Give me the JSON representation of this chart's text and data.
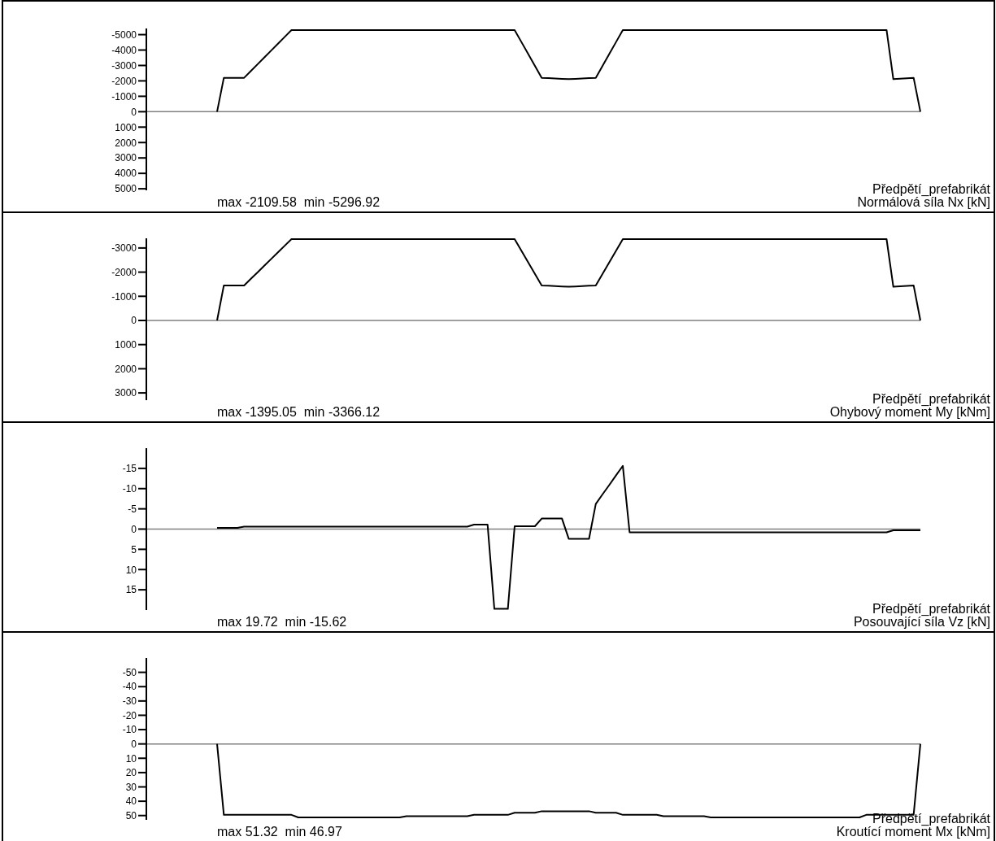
{
  "chart_data": [
    {
      "type": "line",
      "title": "Normálová síla Nx [kN]",
      "subtitle": "Předpětí_prefabrikát",
      "annotations": [
        "max -2109.58  min -5296.92"
      ],
      "tick_labels": "y",
      "color": "#000000",
      "ylim": [
        5100,
        -5400
      ],
      "yticks": [
        -5000,
        -4000,
        -3000,
        -2000,
        -1000,
        0,
        1000,
        2000,
        3000,
        4000,
        5000
      ],
      "ref_lines": [
        {
          "axis": "y",
          "value": 0,
          "color": "#808080"
        }
      ],
      "categories": [
        null,
        null,
        null,
        null,
        null,
        null,
        null,
        null,
        null,
        null,
        null,
        null,
        null,
        null,
        null,
        null,
        null,
        null,
        null,
        null,
        null,
        null,
        null,
        null,
        null,
        null,
        null,
        null,
        null,
        null,
        null,
        null,
        null,
        null,
        null,
        null,
        null,
        null,
        null,
        null,
        null,
        null,
        null,
        null,
        null,
        null,
        null,
        null,
        null,
        null,
        null,
        null,
        null,
        null,
        null,
        null,
        null,
        null,
        null,
        null,
        null,
        null,
        null,
        null,
        null,
        null,
        null,
        null,
        null,
        null,
        null,
        null,
        null,
        null,
        null,
        null,
        null,
        null,
        null,
        null,
        null,
        null,
        null,
        null,
        null,
        null,
        null,
        null,
        null,
        null,
        null,
        null,
        null,
        null,
        null,
        null,
        null,
        null,
        null,
        null,
        null,
        null,
        null,
        null,
        null
      ],
      "values": [
        0,
        -2200,
        -2200,
        -2200,
        -2200,
        -2642,
        -3085,
        -3527,
        -3970,
        -4412,
        -4855,
        -5297,
        -5297,
        -5297,
        -5297,
        -5297,
        -5297,
        -5297,
        -5297,
        -5297,
        -5297,
        -5297,
        -5297,
        -5297,
        -5297,
        -5297,
        -5297,
        -5297,
        -5297,
        -5297,
        -5297,
        -5297,
        -5297,
        -5297,
        -5297,
        -5297,
        -5297,
        -5297,
        -5297,
        -5297,
        -5297,
        -5297,
        -5297,
        -5297,
        -5297,
        -4523,
        -3749,
        -2974,
        -2200,
        -2178,
        -2155,
        -2133,
        -2110,
        -2133,
        -2155,
        -2178,
        -2200,
        -2974,
        -3749,
        -4523,
        -5297,
        -5297,
        -5297,
        -5297,
        -5297,
        -5297,
        -5297,
        -5297,
        -5297,
        -5297,
        -5297,
        -5297,
        -5297,
        -5297,
        -5297,
        -5297,
        -5297,
        -5297,
        -5297,
        -5297,
        -5297,
        -5297,
        -5297,
        -5297,
        -5297,
        -5297,
        -5297,
        -5297,
        -5297,
        -5297,
        -5297,
        -5297,
        -5297,
        -5297,
        -5297,
        -5297,
        -5297,
        -5297,
        -5297,
        -5297,
        -2110,
        -2140,
        -2170,
        -2200,
        0
      ]
    },
    {
      "type": "line",
      "title": "Ohybový moment My [kNm]",
      "subtitle": "Předpětí_prefabrikát",
      "annotations": [
        "max -1395.05  min -3366.12"
      ],
      "tick_labels": "y",
      "color": "#000000",
      "ylim": [
        3300,
        -3400
      ],
      "yticks": [
        -3000,
        -2000,
        -1000,
        0,
        1000,
        2000,
        3000
      ],
      "ref_lines": [
        {
          "axis": "y",
          "value": 0,
          "color": "#808080"
        }
      ],
      "categories": [
        null,
        null,
        null,
        null,
        null,
        null,
        null,
        null,
        null,
        null,
        null,
        null,
        null,
        null,
        null,
        null,
        null,
        null,
        null,
        null,
        null,
        null,
        null,
        null,
        null,
        null,
        null,
        null,
        null,
        null,
        null,
        null,
        null,
        null,
        null,
        null,
        null,
        null,
        null,
        null,
        null,
        null,
        null,
        null,
        null,
        null,
        null,
        null,
        null,
        null,
        null,
        null,
        null,
        null,
        null,
        null,
        null,
        null,
        null,
        null,
        null,
        null,
        null,
        null,
        null,
        null,
        null,
        null,
        null,
        null,
        null,
        null,
        null,
        null,
        null,
        null,
        null,
        null,
        null,
        null,
        null,
        null,
        null,
        null,
        null,
        null,
        null,
        null,
        null,
        null,
        null,
        null,
        null,
        null,
        null,
        null,
        null,
        null,
        null,
        null,
        null,
        null,
        null,
        null,
        null
      ],
      "values": [
        0,
        -1450,
        -1450,
        -1450,
        -1450,
        -1724,
        -1997,
        -2271,
        -2545,
        -2819,
        -3092,
        -3366,
        -3366,
        -3366,
        -3366,
        -3366,
        -3366,
        -3366,
        -3366,
        -3366,
        -3366,
        -3366,
        -3366,
        -3366,
        -3366,
        -3366,
        -3366,
        -3366,
        -3366,
        -3366,
        -3366,
        -3366,
        -3366,
        -3366,
        -3366,
        -3366,
        -3366,
        -3366,
        -3366,
        -3366,
        -3366,
        -3366,
        -3366,
        -3366,
        -3366,
        -2887,
        -2408,
        -1929,
        -1450,
        -1436,
        -1422,
        -1409,
        -1395,
        -1409,
        -1422,
        -1436,
        -1450,
        -1929,
        -2408,
        -2887,
        -3366,
        -3366,
        -3366,
        -3366,
        -3366,
        -3366,
        -3366,
        -3366,
        -3366,
        -3366,
        -3366,
        -3366,
        -3366,
        -3366,
        -3366,
        -3366,
        -3366,
        -3366,
        -3366,
        -3366,
        -3366,
        -3366,
        -3366,
        -3366,
        -3366,
        -3366,
        -3366,
        -3366,
        -3366,
        -3366,
        -3366,
        -3366,
        -3366,
        -3366,
        -3366,
        -3366,
        -3366,
        -3366,
        -3366,
        -3366,
        -1395,
        -1413,
        -1432,
        -1450,
        0
      ]
    },
    {
      "type": "line",
      "title": "Posouvající síla Vz [kN]",
      "subtitle": "Předpětí_prefabrikát",
      "annotations": [
        "max 19.72  min -15.62"
      ],
      "tick_labels": "y",
      "color": "#000000",
      "ylim": [
        20,
        -20
      ],
      "yticks": [
        -15,
        -10,
        -5,
        0,
        5,
        10,
        15
      ],
      "ref_lines": [
        {
          "axis": "y",
          "value": 0,
          "color": "#808080"
        }
      ],
      "categories": [
        null,
        null,
        null,
        null,
        null,
        null,
        null,
        null,
        null,
        null,
        null,
        null,
        null,
        null,
        null,
        null,
        null,
        null,
        null,
        null,
        null,
        null,
        null,
        null,
        null,
        null,
        null,
        null,
        null,
        null,
        null,
        null,
        null,
        null,
        null,
        null,
        null,
        null,
        null,
        null,
        null,
        null,
        null,
        null,
        null,
        null,
        null,
        null,
        null,
        null,
        null,
        null,
        null,
        null,
        null,
        null,
        null,
        null,
        null,
        null,
        null,
        null,
        null,
        null,
        null,
        null,
        null,
        null,
        null,
        null,
        null,
        null,
        null,
        null,
        null,
        null,
        null,
        null,
        null,
        null,
        null,
        null,
        null,
        null,
        null,
        null,
        null,
        null,
        null,
        null,
        null,
        null,
        null,
        null,
        null,
        null,
        null,
        null,
        null,
        null,
        null,
        null,
        null,
        null,
        null
      ],
      "values": [
        -0.3,
        -0.3,
        -0.3,
        -0.3,
        -0.6,
        -0.6,
        -0.6,
        -0.6,
        -0.6,
        -0.6,
        -0.6,
        -0.6,
        -0.6,
        -0.6,
        -0.6,
        -0.6,
        -0.6,
        -0.6,
        -0.6,
        -0.6,
        -0.6,
        -0.6,
        -0.6,
        -0.6,
        -0.6,
        -0.6,
        -0.6,
        -0.6,
        -0.6,
        -0.6,
        -0.6,
        -0.6,
        -0.6,
        -0.6,
        -0.6,
        -0.6,
        -0.6,
        -0.6,
        -1.1,
        -1.1,
        -1.1,
        19.72,
        19.72,
        19.72,
        -0.7,
        -0.7,
        -0.7,
        -0.7,
        -2.6,
        -2.6,
        -2.6,
        -2.6,
        2.4,
        2.4,
        2.4,
        2.4,
        -6.2,
        -8.6,
        -10.9,
        -13.3,
        -15.62,
        0.8,
        0.8,
        0.8,
        0.8,
        0.8,
        0.8,
        0.8,
        0.8,
        0.8,
        0.8,
        0.8,
        0.8,
        0.8,
        0.8,
        0.8,
        0.8,
        0.8,
        0.8,
        0.8,
        0.8,
        0.8,
        0.8,
        0.8,
        0.8,
        0.8,
        0.8,
        0.8,
        0.8,
        0.8,
        0.8,
        0.8,
        0.8,
        0.8,
        0.8,
        0.8,
        0.8,
        0.8,
        0.8,
        0.8,
        0.3,
        0.3,
        0.3,
        0.3,
        0.3
      ]
    },
    {
      "type": "line",
      "title": "Kroutící moment Mx [kNm]",
      "subtitle": "Předpětí_prefabrikát",
      "annotations": [
        "max 51.32  min 46.97"
      ],
      "tick_labels": "y",
      "color": "#000000",
      "ylim": [
        53,
        -60
      ],
      "yticks": [
        -50,
        -40,
        -30,
        -20,
        -10,
        0,
        10,
        20,
        30,
        40,
        50
      ],
      "ref_lines": [
        {
          "axis": "y",
          "value": 0,
          "color": "#808080"
        }
      ],
      "categories": [
        null,
        null,
        null,
        null,
        null,
        null,
        null,
        null,
        null,
        null,
        null,
        null,
        null,
        null,
        null,
        null,
        null,
        null,
        null,
        null,
        null,
        null,
        null,
        null,
        null,
        null,
        null,
        null,
        null,
        null,
        null,
        null,
        null,
        null,
        null,
        null,
        null,
        null,
        null,
        null,
        null,
        null,
        null,
        null,
        null,
        null,
        null,
        null,
        null,
        null,
        null,
        null,
        null,
        null,
        null,
        null,
        null,
        null,
        null,
        null,
        null,
        null,
        null,
        null,
        null,
        null,
        null,
        null,
        null,
        null,
        null,
        null,
        null,
        null,
        null,
        null,
        null,
        null,
        null,
        null,
        null,
        null,
        null,
        null,
        null,
        null,
        null,
        null,
        null,
        null,
        null,
        null,
        null,
        null,
        null,
        null,
        null,
        null,
        null,
        null,
        null,
        null,
        null,
        null,
        null
      ],
      "values": [
        0,
        49.5,
        49.5,
        49.5,
        49.5,
        49.5,
        49.5,
        49.5,
        49.5,
        49.5,
        49.5,
        49.5,
        51.32,
        51.32,
        51.32,
        51.32,
        51.32,
        51.32,
        51.32,
        51.32,
        51.32,
        51.32,
        51.32,
        51.32,
        51.32,
        51.32,
        51.32,
        51.32,
        50.5,
        50.5,
        50.5,
        50.5,
        50.5,
        50.5,
        50.5,
        50.5,
        50.5,
        50.5,
        49.5,
        49.5,
        49.5,
        49.5,
        49.5,
        49.5,
        48,
        48,
        48,
        48,
        46.97,
        46.97,
        46.97,
        46.97,
        46.97,
        46.97,
        46.97,
        46.97,
        48,
        48,
        48,
        48,
        49.5,
        49.5,
        49.5,
        49.5,
        49.5,
        49.5,
        50.5,
        50.5,
        50.5,
        50.5,
        50.5,
        50.5,
        50.5,
        51.32,
        51.32,
        51.32,
        51.32,
        51.32,
        51.32,
        51.32,
        51.32,
        51.32,
        51.32,
        51.32,
        51.32,
        51.32,
        51.32,
        51.32,
        51.32,
        51.32,
        51.32,
        51.32,
        51.32,
        51.32,
        51.32,
        51.32,
        49.5,
        49.5,
        49.5,
        49.5,
        49.5,
        49.5,
        49.5,
        49.5,
        0
      ]
    }
  ]
}
